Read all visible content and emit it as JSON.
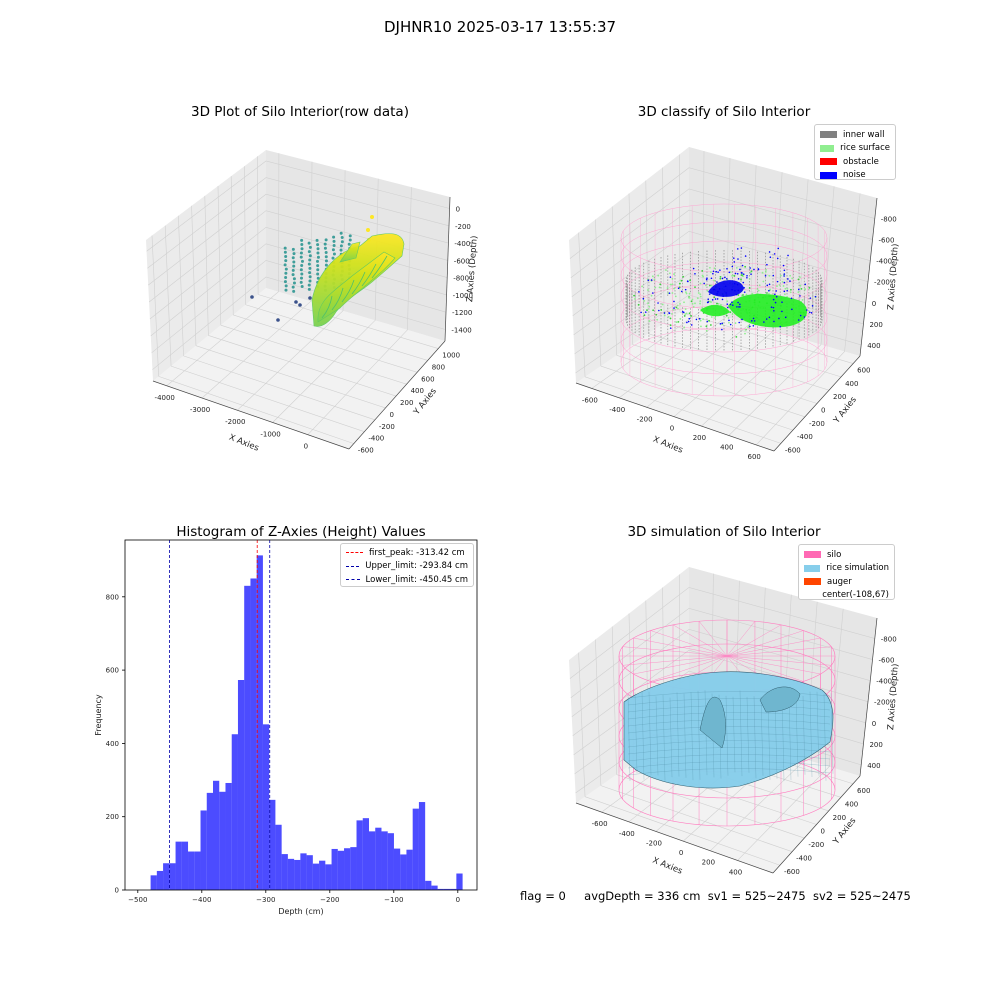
{
  "suptitle": "DJHNR10 2025-03-17 13:55:37",
  "footer": {
    "flag": "flag = 0",
    "avg_depth": "avgDepth = 336 cm",
    "sv1": "sv1 = 525~2475",
    "sv2": "sv2 = 525~2475"
  },
  "chart_data": [
    {
      "type": "scatter",
      "subtype": "3d",
      "title": "3D Plot of Silo Interior(row data)",
      "xlabel": "X Axies",
      "ylabel": "Y Axies",
      "zlabel": "Z Axies (Depth)",
      "x_ticks": [
        "-4000",
        "-3000",
        "-2000",
        "-1000",
        "0"
      ],
      "y_ticks": [
        "-600",
        "-400",
        "-200",
        "0",
        "200",
        "400",
        "600",
        "800",
        "1000"
      ],
      "z_ticks": [
        "0",
        "-200",
        "-400",
        "-600",
        "-800",
        "-1000",
        "-1200",
        "-1400"
      ],
      "colormap": [
        "#440154",
        "#3b528b",
        "#21918c",
        "#5ec962",
        "#fde725"
      ]
    },
    {
      "type": "scatter",
      "subtype": "3d",
      "title": "3D classify of Silo Interior",
      "xlabel": "X Axies",
      "ylabel": "Y Axies",
      "zlabel": "Z Axies (Depth)",
      "x_ticks": [
        "-600",
        "-400",
        "-200",
        "0",
        "200",
        "400",
        "600"
      ],
      "y_ticks": [
        "-600",
        "-400",
        "-200",
        "0",
        "200",
        "400",
        "600"
      ],
      "z_ticks": [
        "400",
        "200",
        "0",
        "-200",
        "-400",
        "-600",
        "-800"
      ],
      "legend_position": "top-right",
      "legend": [
        {
          "label": "inner wall",
          "color": "#808080"
        },
        {
          "label": "rice surface",
          "color": "#90ee90"
        },
        {
          "label": "obstacle",
          "color": "#ff0000"
        },
        {
          "label": "noise",
          "color": "#0000ff"
        }
      ]
    },
    {
      "type": "bar",
      "subtype": "histogram",
      "title": "Histogram of Z-Axies (Height) Values",
      "xlabel": "Depth (cm)",
      "ylabel": "Frequency",
      "xlim": [
        -520,
        30
      ],
      "ylim": [
        0,
        955
      ],
      "x_ticks": [
        -500,
        -400,
        -300,
        -200,
        -100,
        0
      ],
      "y_ticks": [
        0,
        200,
        400,
        600,
        800
      ],
      "bar_color": "#0000ff",
      "bin_width": 9.75,
      "bins_start": [
        -480,
        -470.25,
        -460.5,
        -450.75,
        -441,
        -431.25,
        -421.5,
        -411.75,
        -402,
        -392.25,
        -382.5,
        -372.75,
        -363,
        -353.25,
        -343.5,
        -333.75,
        -324,
        -314.25,
        -304.5,
        -294.75,
        -285,
        -275.25,
        -265.5,
        -255.75,
        -246,
        -236.25,
        -226.5,
        -216.75,
        -207,
        -197.25,
        -187.5,
        -177.75,
        -168,
        -158.25,
        -148.5,
        -138.75,
        -129,
        -119.25,
        -109.5,
        -99.75,
        -90,
        -80.25,
        -70.5,
        -60.75,
        -51,
        -41.25,
        -31.5,
        -21.75,
        -12,
        -2.25
      ],
      "values": [
        40,
        52,
        73,
        73,
        132,
        132,
        105,
        105,
        217,
        265,
        298,
        268,
        292,
        425,
        573,
        830,
        850,
        913,
        452,
        246,
        178,
        98,
        85,
        82,
        100,
        95,
        72,
        80,
        70,
        112,
        107,
        114,
        117,
        190,
        196,
        160,
        170,
        160,
        155,
        113,
        97,
        110,
        222,
        240,
        25,
        12,
        3,
        3,
        3,
        45
      ],
      "vlines": [
        {
          "label": "first_peak: -313.42 cm",
          "x": -313.42,
          "color": "#ff0000"
        },
        {
          "label": "Upper_limit: -293.84 cm",
          "x": -293.84,
          "color": "#0000aa"
        },
        {
          "label": "Lower_limit: -450.45 cm",
          "x": -450.45,
          "color": "#0000aa"
        }
      ],
      "legend_position": "top-right"
    },
    {
      "type": "area",
      "subtype": "3d surface",
      "title": "3D simulation of Silo Interior",
      "xlabel": "X Axies",
      "ylabel": "Y Axies",
      "zlabel": "Z Axies (Depth)",
      "x_ticks": [
        "-600",
        "-400",
        "-200",
        "0",
        "200",
        "400"
      ],
      "y_ticks": [
        "-600",
        "-400",
        "-200",
        "0",
        "200",
        "400",
        "600"
      ],
      "z_ticks": [
        "400",
        "200",
        "0",
        "-200",
        "-400",
        "-600",
        "-800"
      ],
      "legend_position": "top-right",
      "legend": [
        {
          "label": "silo",
          "color": "#ff69b4"
        },
        {
          "label": "rice simulation",
          "color": "#87ceeb"
        },
        {
          "label": "auger",
          "color": "#ff4500"
        },
        {
          "label": "center(-108,67)",
          "color": ""
        }
      ]
    }
  ]
}
